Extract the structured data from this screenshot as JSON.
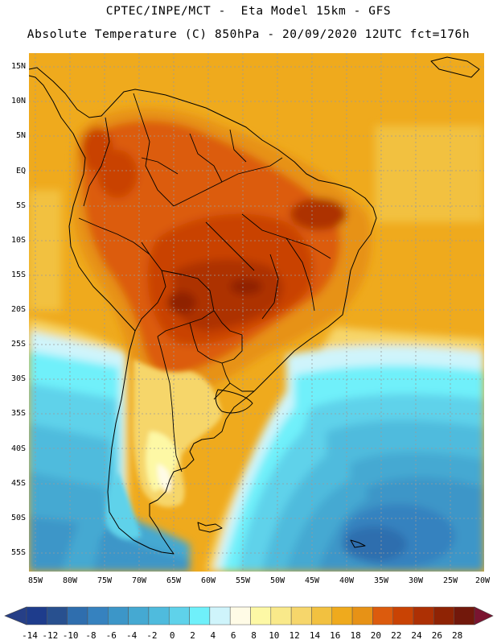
{
  "header": {
    "line1": "CPTEC/INPE/MCT -  Eta Model 15km - GFS",
    "line2": "Absolute Temperature (C) 850hPa - 20/09/2020 12UTC fct=176h"
  },
  "map": {
    "lat_ticks": [
      "15N",
      "10N",
      "5N",
      "EQ",
      "5S",
      "10S",
      "15S",
      "20S",
      "25S",
      "30S",
      "35S",
      "40S",
      "45S",
      "50S",
      "55S"
    ],
    "lon_ticks": [
      "85W",
      "80W",
      "75W",
      "70W",
      "65W",
      "60W",
      "55W",
      "50W",
      "45W",
      "40W",
      "35W",
      "30W",
      "25W",
      "20W"
    ]
  },
  "legend": {
    "ticks": [
      "-14",
      "-12",
      "-10",
      "-8",
      "-6",
      "-4",
      "-2",
      "0",
      "2",
      "4",
      "6",
      "8",
      "10",
      "12",
      "14",
      "16",
      "18",
      "20",
      "22",
      "24",
      "26",
      "28"
    ],
    "colors": [
      "#1e3c8c",
      "#28508f",
      "#2f6eae",
      "#3682bf",
      "#3c96c8",
      "#45a9d2",
      "#4fbbdd",
      "#5fd2ea",
      "#6ff0fa",
      "#cff4fb",
      "#fffbe6",
      "#fdf8a5",
      "#f9e98a",
      "#f6d66b",
      "#f2c140",
      "#efaa1d",
      "#e79216",
      "#dc5b0d",
      "#c94304",
      "#ad3004",
      "#8f2304",
      "#72180b"
    ],
    "low_color": "#263f87",
    "high_color": "#7a1430"
  }
}
